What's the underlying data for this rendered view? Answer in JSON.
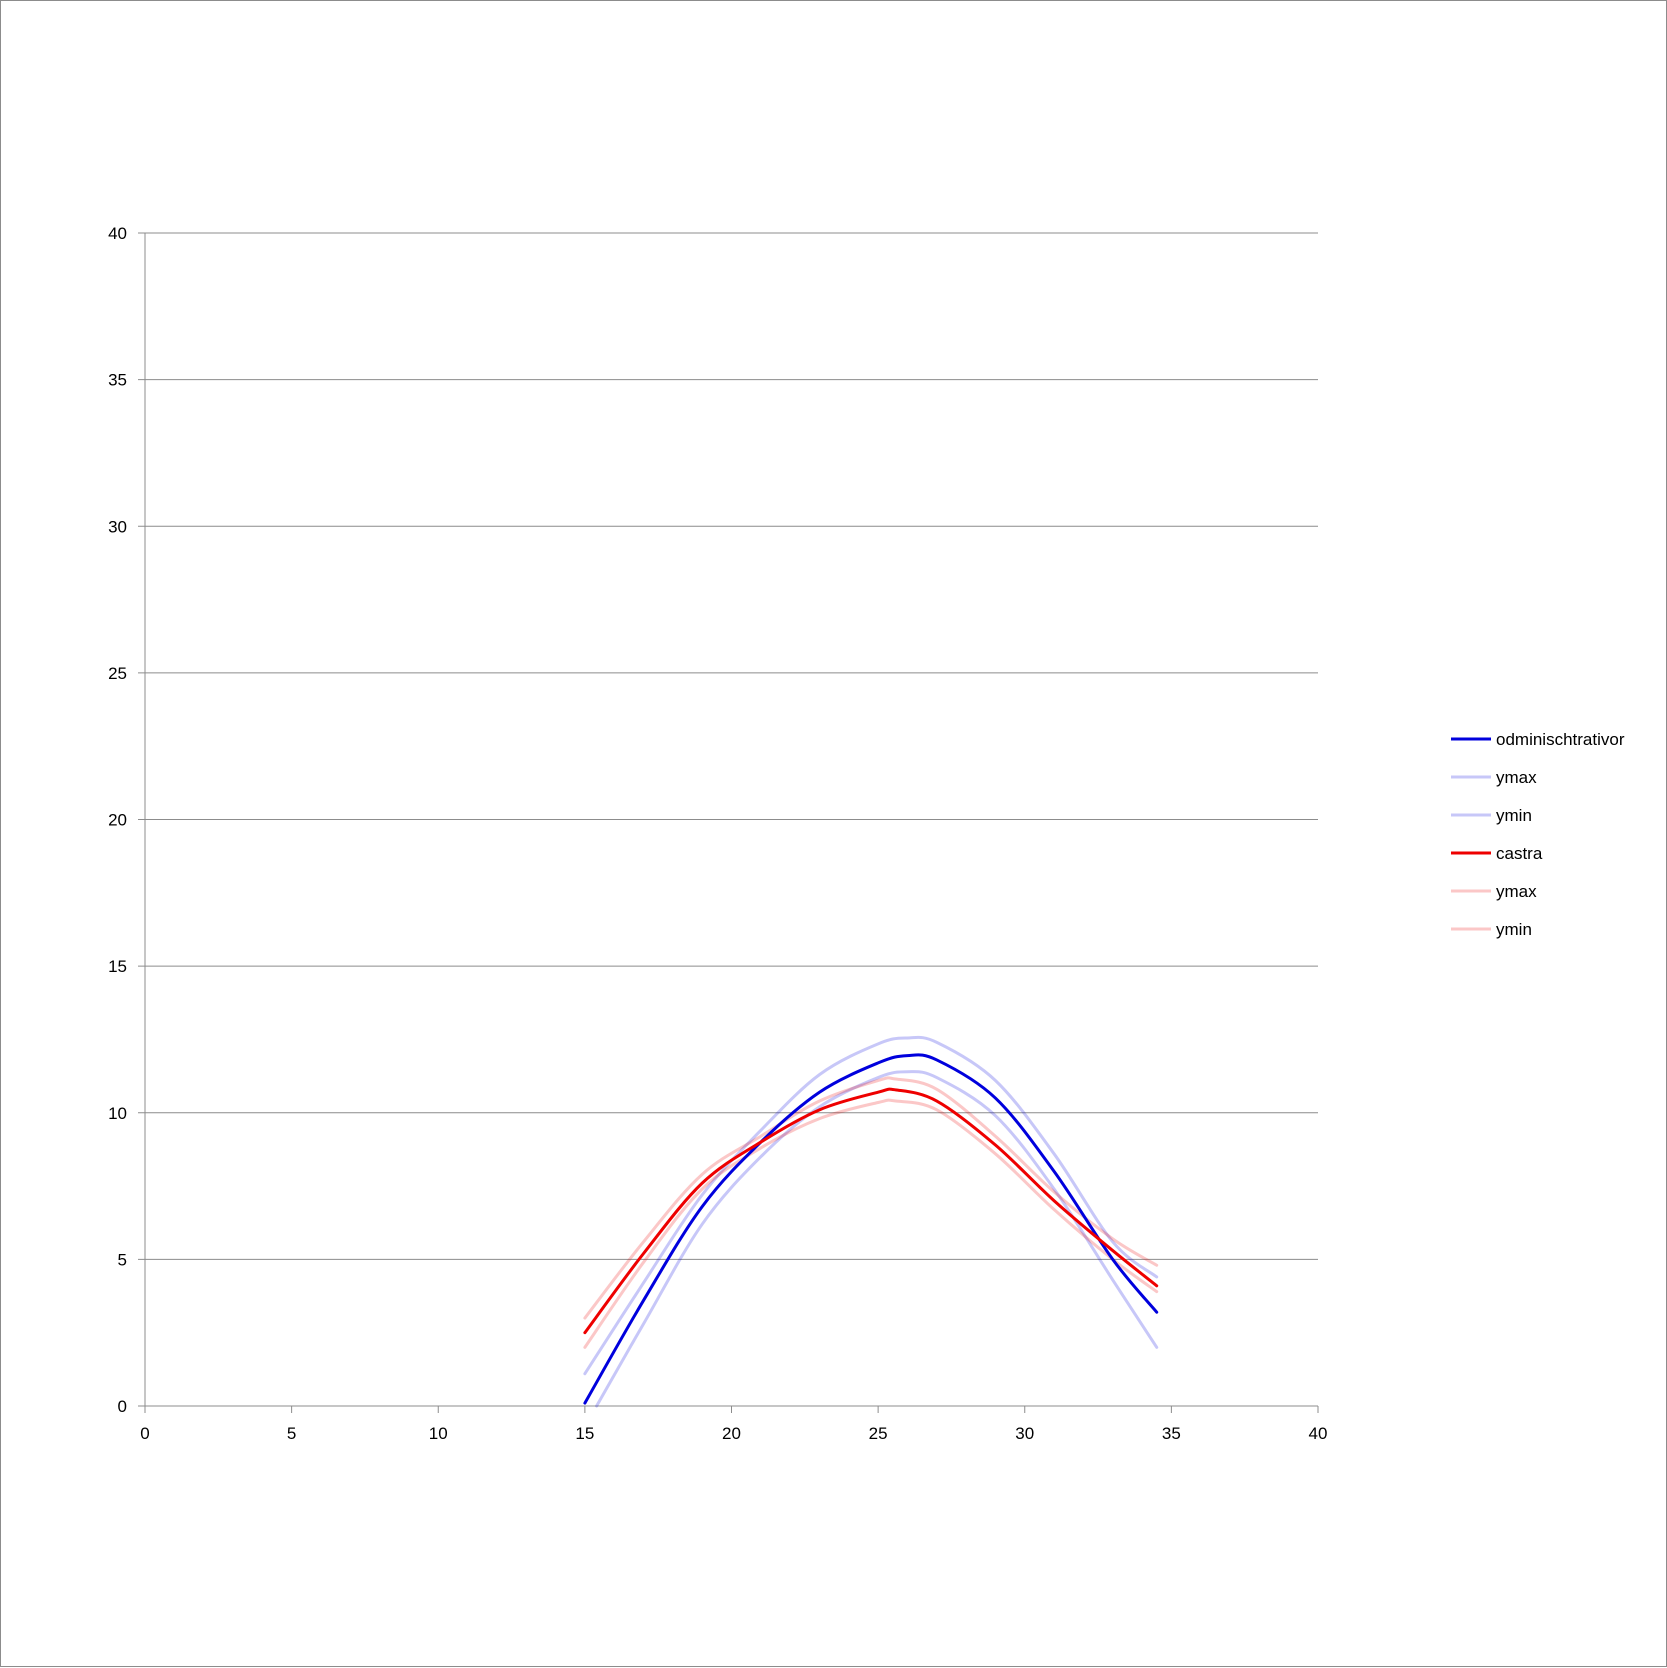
{
  "chart_data": {
    "type": "line",
    "title": "",
    "xlabel": "",
    "ylabel": "",
    "xlim": [
      0,
      40
    ],
    "ylim": [
      0,
      40
    ],
    "x_ticks": [
      "0",
      "5",
      "10",
      "15",
      "20",
      "25",
      "30",
      "35",
      "40"
    ],
    "y_ticks": [
      "0",
      "5",
      "10",
      "15",
      "20",
      "25",
      "30",
      "35",
      "40"
    ],
    "grid": "horizontal",
    "legend": "right",
    "series": [
      {
        "name": "odminischtrativor",
        "color": "#0000dd",
        "opacity": 1,
        "width": 3,
        "x": [
          15,
          17,
          19,
          21,
          23,
          25,
          26,
          27,
          29,
          31,
          33,
          34.5
        ],
        "y": [
          0.1,
          3.6,
          6.8,
          9.0,
          10.7,
          11.7,
          11.95,
          11.8,
          10.5,
          8.0,
          5.0,
          3.2
        ]
      },
      {
        "name": "ymax",
        "color": "#0000dd",
        "opacity": 0.22,
        "width": 3,
        "x": [
          15,
          17,
          19,
          21,
          23,
          25,
          26,
          27,
          29,
          31,
          33,
          34.5
        ],
        "y": [
          1.1,
          4.2,
          7.2,
          9.4,
          11.3,
          12.35,
          12.55,
          12.4,
          11.1,
          8.6,
          5.6,
          4.4
        ]
      },
      {
        "name": "ymin",
        "color": "#0000dd",
        "opacity": 0.22,
        "width": 3,
        "x": [
          15.4,
          17,
          19,
          21,
          23,
          25,
          26,
          27,
          29,
          31,
          33,
          34.5
        ],
        "y": [
          0,
          2.8,
          6.2,
          8.5,
          10.2,
          11.2,
          11.4,
          11.2,
          9.9,
          7.4,
          4.3,
          2.0
        ]
      },
      {
        "name": "castra",
        "color": "#ee0000",
        "opacity": 1,
        "width": 3,
        "x": [
          15,
          17,
          19,
          21,
          23,
          25,
          25.6,
          27,
          29,
          31,
          33,
          34.5
        ],
        "y": [
          2.5,
          5.2,
          7.6,
          9.0,
          10.1,
          10.7,
          10.78,
          10.4,
          8.9,
          7.0,
          5.3,
          4.1
        ]
      },
      {
        "name": "ymax",
        "color": "#ee0000",
        "opacity": 0.22,
        "width": 3,
        "x": [
          15,
          17,
          19,
          21,
          23,
          25,
          25.6,
          27,
          29,
          31,
          33,
          34.5
        ],
        "y": [
          3.0,
          5.6,
          7.9,
          9.2,
          10.4,
          11.1,
          11.15,
          10.8,
          9.2,
          7.3,
          5.7,
          4.8
        ]
      },
      {
        "name": "ymin",
        "color": "#ee0000",
        "opacity": 0.22,
        "width": 3,
        "x": [
          15,
          17,
          19,
          21,
          23,
          25,
          25.6,
          27,
          29,
          31,
          33,
          34.5
        ],
        "y": [
          2.0,
          4.9,
          7.4,
          8.8,
          9.8,
          10.35,
          10.4,
          10.1,
          8.6,
          6.7,
          5.0,
          3.9
        ]
      }
    ]
  }
}
